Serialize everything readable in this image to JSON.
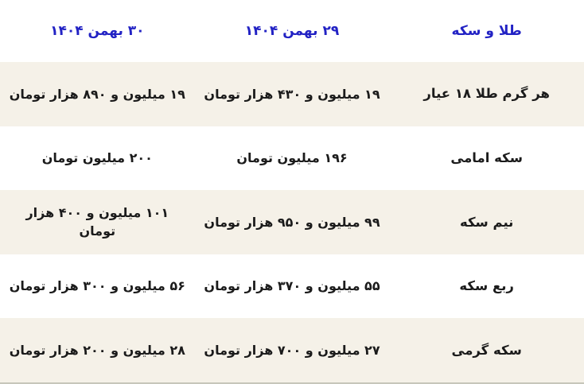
{
  "title": "طلا و سکه",
  "colors": {
    "header_text": "#2222c4",
    "cell_text": "#1b1b1b",
    "row_stripe_bg": "#f5f1e8",
    "row_plain_bg": "#ffffff",
    "bottom_border": "#c6c6ba"
  },
  "chart_data": {
    "type": "table",
    "title": "طلا و سکه",
    "columns": [
      "طلا و سکه",
      "۲۹ بهمن ۱۴۰۴",
      "۳۰ بهمن ۱۴۰۴"
    ],
    "rows": [
      [
        "هر گرم طلا ۱۸ عیار",
        "۱۹ میلیون و ۴۳۰ هزار تومان",
        "۱۹ میلیون و ۸۹۰ هزار تومان"
      ],
      [
        "سکه امامی",
        "۱۹۶ میلیون تومان",
        "۲۰۰ میلیون تومان"
      ],
      [
        "نیم سکه",
        "۹۹ میلیون و ۹۵۰ هزار تومان",
        "۱۰۱ میلیون و ۴۰۰ هزار تومان"
      ],
      [
        "ربع سکه",
        "۵۵ میلیون و ۳۷۰ هزار تومان",
        "۵۶ میلیون و ۳۰۰ هزار تومان"
      ],
      [
        "سکه گرمی",
        "۲۷ میلیون و ۷۰۰ هزار تومان",
        "۲۸ میلیون و ۲۰۰ هزار تومان"
      ]
    ],
    "series": [
      {
        "name": "۲۹ بهمن ۱۴۰۴",
        "values_million_toman": [
          19.43,
          196,
          99.95,
          55.37,
          27.7
        ]
      },
      {
        "name": "۳۰ بهمن ۱۴۰۴",
        "values_million_toman": [
          19.89,
          200,
          101.4,
          56.3,
          28.2
        ]
      }
    ],
    "categories": [
      "هر گرم طلا ۱۸ عیار",
      "سکه امامی",
      "نیم سکه",
      "ربع سکه",
      "سکه گرمی"
    ],
    "layout": {
      "direction": "rtl",
      "row_striping": true,
      "grid": false
    }
  }
}
